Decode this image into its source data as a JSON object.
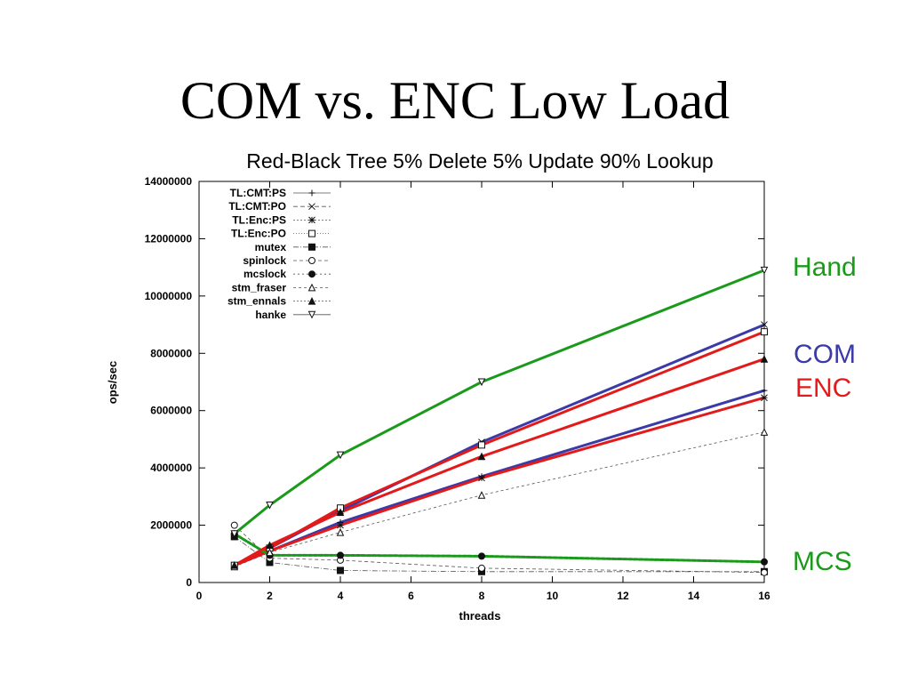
{
  "slide": {
    "title": "COM vs. ENC Low Load"
  },
  "colors": {
    "hand": "#1a9a1a",
    "com": "#3a3aa8",
    "enc": "#e31a1a",
    "mcs": "#1a9a1a",
    "thin": "#555555"
  },
  "side_labels": {
    "hand": "Hand",
    "com": "COM",
    "enc": "ENC",
    "mcs": "MCS"
  },
  "chart_data": {
    "type": "line",
    "title": "Red-Black Tree 5% Delete 5% Update 90% Lookup",
    "xlabel": "threads",
    "ylabel": "ops/sec",
    "xlim": [
      0,
      16
    ],
    "ylim": [
      0,
      14000000
    ],
    "xticks": [
      0,
      2,
      4,
      6,
      8,
      10,
      12,
      14,
      16
    ],
    "yticks": [
      0,
      2000000,
      4000000,
      6000000,
      8000000,
      10000000,
      12000000,
      14000000
    ],
    "ytick_labels": [
      "0",
      "2000000",
      "4000000",
      "6000000",
      "8000000",
      "10000000",
      "12000000",
      "14000000"
    ],
    "legend_position": "top-left",
    "grid": false,
    "x": [
      1,
      2,
      4,
      8,
      16
    ],
    "series": [
      {
        "name": "TL:CMT:PS",
        "marker": "plus",
        "dash": "",
        "highlight": "com",
        "values": [
          600000,
          1100000,
          2100000,
          3700000,
          6700000
        ]
      },
      {
        "name": "TL:CMT:PO",
        "marker": "cross",
        "dash": "5,3",
        "highlight": "com",
        "values": [
          600000,
          1200000,
          2500000,
          4900000,
          9000000
        ]
      },
      {
        "name": "TL:Enc:PS",
        "marker": "star",
        "dash": "2,2",
        "highlight": "enc",
        "values": [
          600000,
          1100000,
          2000000,
          3650000,
          6450000
        ]
      },
      {
        "name": "TL:Enc:PO",
        "marker": "square-open",
        "dash": "1,2",
        "highlight": "enc",
        "values": [
          600000,
          1200000,
          2600000,
          4800000,
          8750000
        ]
      },
      {
        "name": "mutex",
        "marker": "square-filled",
        "dash": "6,2,1,2",
        "highlight": "",
        "values": [
          1600000,
          700000,
          420000,
          380000,
          380000
        ]
      },
      {
        "name": "spinlock",
        "marker": "circle-open",
        "dash": "4,3",
        "highlight": "",
        "values": [
          2000000,
          850000,
          780000,
          500000,
          350000
        ]
      },
      {
        "name": "mcslock",
        "marker": "circle-filled",
        "dash": "2,3",
        "highlight": "mcs",
        "values": [
          1700000,
          950000,
          950000,
          920000,
          720000
        ]
      },
      {
        "name": "stm_fraser",
        "marker": "triangle-open",
        "dash": "3,3",
        "highlight": "",
        "values": [
          550000,
          1050000,
          1750000,
          3050000,
          5250000
        ]
      },
      {
        "name": "stm_ennals",
        "marker": "triangle-filled",
        "dash": "2,2",
        "highlight": "enc",
        "values": [
          600000,
          1300000,
          2450000,
          4400000,
          7800000
        ]
      },
      {
        "name": "hanke",
        "marker": "triangle-down-open",
        "dash": "",
        "highlight": "hand",
        "values": [
          1700000,
          2700000,
          4450000,
          7000000,
          10900000
        ]
      }
    ]
  }
}
